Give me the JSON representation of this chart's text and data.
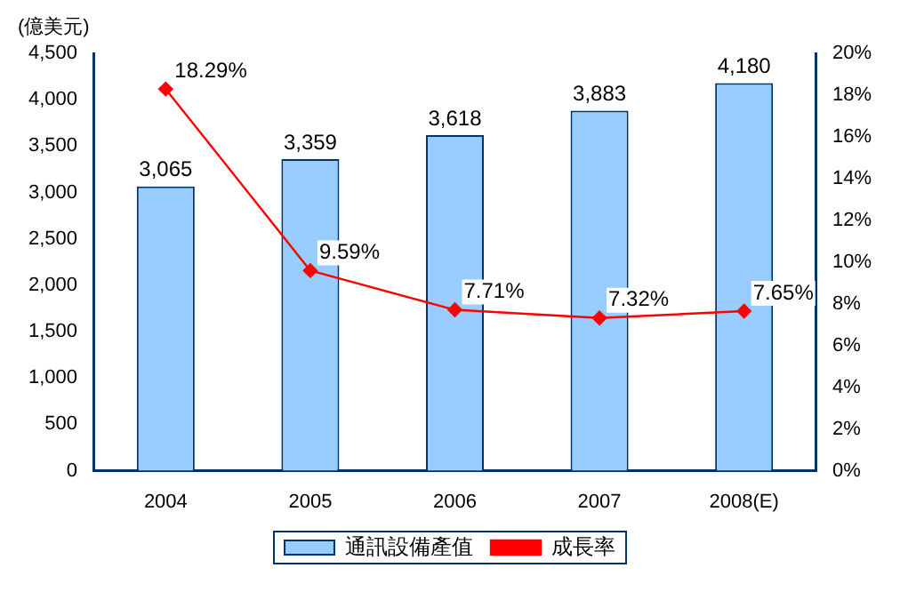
{
  "chart_data": {
    "type": "bar",
    "ylabel": "(億美元)",
    "categories": [
      "2004",
      "2005",
      "2006",
      "2007",
      "2008(E)"
    ],
    "series": [
      {
        "name": "通訊設備產值",
        "color": "#99ccff",
        "values": [
          3065,
          3359,
          3618,
          3883,
          4180
        ],
        "value_labels": [
          "3,065",
          "3,359",
          "3,618",
          "3,883",
          "4,180"
        ]
      },
      {
        "name": "成長率",
        "type": "line",
        "axis": "y2",
        "color": "#ff0000",
        "values": [
          18.29,
          9.59,
          7.71,
          7.32,
          7.65
        ],
        "value_labels": [
          "18.29%",
          "9.59%",
          "7.71%",
          "7.32%",
          "7.65%"
        ]
      }
    ],
    "ylim": [
      0,
      4500
    ],
    "yticks": [
      {
        "value": 0,
        "label": "0"
      },
      {
        "value": 500,
        "label": "500"
      },
      {
        "value": 1000,
        "label": "1,000"
      },
      {
        "value": 1500,
        "label": "1,500"
      },
      {
        "value": 2000,
        "label": "2,000"
      },
      {
        "value": 2500,
        "label": "2,500"
      },
      {
        "value": 3000,
        "label": "3,000"
      },
      {
        "value": 3500,
        "label": "3,500"
      },
      {
        "value": 4000,
        "label": "4,000"
      },
      {
        "value": 4500,
        "label": "4,500"
      }
    ],
    "y2lim": [
      0,
      20
    ],
    "y2ticks": [
      {
        "value": 0,
        "label": "0%"
      },
      {
        "value": 2,
        "label": "2%"
      },
      {
        "value": 4,
        "label": "4%"
      },
      {
        "value": 6,
        "label": "6%"
      },
      {
        "value": 8,
        "label": "8%"
      },
      {
        "value": 10,
        "label": "10%"
      },
      {
        "value": 12,
        "label": "12%"
      },
      {
        "value": 14,
        "label": "14%"
      },
      {
        "value": 16,
        "label": "16%"
      },
      {
        "value": 18,
        "label": "18%"
      },
      {
        "value": 20,
        "label": "20%"
      }
    ],
    "grid": false,
    "legend": "bottom",
    "marker": "diamond",
    "line_style": "solid"
  }
}
